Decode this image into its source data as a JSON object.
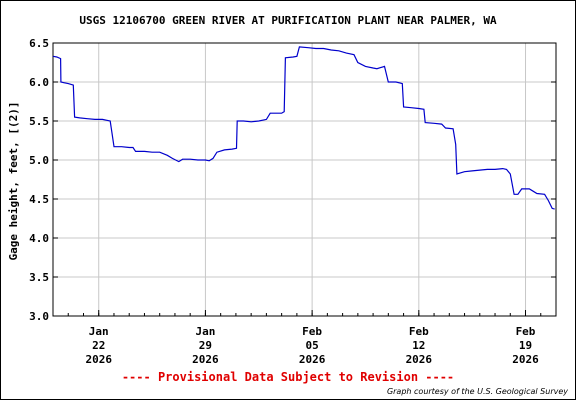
{
  "chart_data": {
    "type": "line",
    "title": "USGS 12106700 GREEN RIVER AT PURIFICATION PLANT NEAR PALMER, WA",
    "ylabel": "Gage height, feet, [(2)]",
    "xlabel": "",
    "ylim": [
      3.0,
      6.5
    ],
    "yticks": [
      {
        "value": 3.0,
        "label": "3.0"
      },
      {
        "value": 3.5,
        "label": "3.5"
      },
      {
        "value": 4.0,
        "label": "4.0"
      },
      {
        "value": 4.5,
        "label": "4.5"
      },
      {
        "value": 5.0,
        "label": "5.0"
      },
      {
        "value": 5.5,
        "label": "5.5"
      },
      {
        "value": 6.0,
        "label": "6.0"
      },
      {
        "value": 6.5,
        "label": "6.5"
      }
    ],
    "xrange": [
      "2026-01-19",
      "2026-02-21"
    ],
    "xticks": [
      {
        "date": "2026-01-22",
        "lines": [
          "Jan",
          "22",
          "2026"
        ]
      },
      {
        "date": "2026-01-29",
        "lines": [
          "Jan",
          "29",
          "2026"
        ]
      },
      {
        "date": "2026-02-05",
        "lines": [
          "Feb",
          "05",
          "2026"
        ]
      },
      {
        "date": "2026-02-12",
        "lines": [
          "Feb",
          "12",
          "2026"
        ]
      },
      {
        "date": "2026-02-19",
        "lines": [
          "Feb",
          "19",
          "2026"
        ]
      }
    ],
    "grid": true,
    "series": [
      {
        "color": "#0000cc",
        "points": [
          [
            "2026-01-19T00:00",
            6.33
          ],
          [
            "2026-01-19T06:00",
            6.32
          ],
          [
            "2026-01-19T12:00",
            6.3
          ],
          [
            "2026-01-19T12:30",
            6.0
          ],
          [
            "2026-01-19T18:00",
            5.99
          ],
          [
            "2026-01-20T00:00",
            5.98
          ],
          [
            "2026-01-20T08:00",
            5.96
          ],
          [
            "2026-01-20T10:00",
            5.55
          ],
          [
            "2026-01-20T18:00",
            5.54
          ],
          [
            "2026-01-21T06:00",
            5.53
          ],
          [
            "2026-01-21T18:00",
            5.52
          ],
          [
            "2026-01-22T06:00",
            5.52
          ],
          [
            "2026-01-22T12:00",
            5.51
          ],
          [
            "2026-01-22T18:00",
            5.5
          ],
          [
            "2026-01-23T00:00",
            5.17
          ],
          [
            "2026-01-23T12:00",
            5.17
          ],
          [
            "2026-01-24T00:00",
            5.16
          ],
          [
            "2026-01-24T06:00",
            5.16
          ],
          [
            "2026-01-24T10:00",
            5.11
          ],
          [
            "2026-01-25T00:00",
            5.11
          ],
          [
            "2026-01-25T12:00",
            5.1
          ],
          [
            "2026-01-26T00:00",
            5.1
          ],
          [
            "2026-01-26T12:00",
            5.06
          ],
          [
            "2026-01-26T20:00",
            5.02
          ],
          [
            "2026-01-27T06:00",
            4.98
          ],
          [
            "2026-01-27T12:00",
            5.01
          ],
          [
            "2026-01-28T00:00",
            5.01
          ],
          [
            "2026-01-28T12:00",
            5.0
          ],
          [
            "2026-01-29T00:00",
            5.0
          ],
          [
            "2026-01-29T06:00",
            4.99
          ],
          [
            "2026-01-29T12:00",
            5.02
          ],
          [
            "2026-01-29T18:00",
            5.1
          ],
          [
            "2026-01-30T06:00",
            5.13
          ],
          [
            "2026-01-30T18:00",
            5.14
          ],
          [
            "2026-01-31T01:00",
            5.15
          ],
          [
            "2026-01-31T02:00",
            5.5
          ],
          [
            "2026-01-31T12:00",
            5.5
          ],
          [
            "2026-02-01T00:00",
            5.49
          ],
          [
            "2026-02-01T12:00",
            5.5
          ],
          [
            "2026-02-02T00:00",
            5.52
          ],
          [
            "2026-02-02T06:00",
            5.6
          ],
          [
            "2026-02-02T12:00",
            5.6
          ],
          [
            "2026-02-03T00:00",
            5.6
          ],
          [
            "2026-02-03T04:00",
            5.62
          ],
          [
            "2026-02-03T06:00",
            6.31
          ],
          [
            "2026-02-03T18:00",
            6.32
          ],
          [
            "2026-02-04T00:00",
            6.33
          ],
          [
            "2026-02-04T04:00",
            6.45
          ],
          [
            "2026-02-04T18:00",
            6.44
          ],
          [
            "2026-02-05T06:00",
            6.43
          ],
          [
            "2026-02-05T18:00",
            6.43
          ],
          [
            "2026-02-06T06:00",
            6.41
          ],
          [
            "2026-02-06T18:00",
            6.4
          ],
          [
            "2026-02-07T06:00",
            6.37
          ],
          [
            "2026-02-07T18:00",
            6.35
          ],
          [
            "2026-02-08T00:00",
            6.25
          ],
          [
            "2026-02-08T12:00",
            6.2
          ],
          [
            "2026-02-09T00:00",
            6.18
          ],
          [
            "2026-02-09T06:00",
            6.17
          ],
          [
            "2026-02-09T18:00",
            6.2
          ],
          [
            "2026-02-10T00:00",
            6.0
          ],
          [
            "2026-02-10T12:00",
            6.0
          ],
          [
            "2026-02-10T22:00",
            5.98
          ],
          [
            "2026-02-11T00:00",
            5.68
          ],
          [
            "2026-02-11T12:00",
            5.67
          ],
          [
            "2026-02-12T00:00",
            5.66
          ],
          [
            "2026-02-12T08:00",
            5.65
          ],
          [
            "2026-02-12T10:00",
            5.48
          ],
          [
            "2026-02-13T00:00",
            5.47
          ],
          [
            "2026-02-13T12:00",
            5.46
          ],
          [
            "2026-02-13T18:00",
            5.41
          ],
          [
            "2026-02-14T06:00",
            5.4
          ],
          [
            "2026-02-14T10:00",
            5.2
          ],
          [
            "2026-02-14T12:00",
            4.82
          ],
          [
            "2026-02-15T00:00",
            4.85
          ],
          [
            "2026-02-15T12:00",
            4.86
          ],
          [
            "2026-02-16T00:00",
            4.87
          ],
          [
            "2026-02-16T12:00",
            4.88
          ],
          [
            "2026-02-17T00:00",
            4.88
          ],
          [
            "2026-02-17T12:00",
            4.89
          ],
          [
            "2026-02-17T18:00",
            4.88
          ],
          [
            "2026-02-18T00:00",
            4.82
          ],
          [
            "2026-02-18T06:00",
            4.56
          ],
          [
            "2026-02-18T12:00",
            4.56
          ],
          [
            "2026-02-18T18:00",
            4.63
          ],
          [
            "2026-02-19T06:00",
            4.63
          ],
          [
            "2026-02-19T12:00",
            4.6
          ],
          [
            "2026-02-19T18:00",
            4.57
          ],
          [
            "2026-02-20T06:00",
            4.56
          ],
          [
            "2026-02-20T12:00",
            4.48
          ],
          [
            "2026-02-20T18:00",
            4.38
          ],
          [
            "2026-02-20T22:00",
            4.37
          ]
        ]
      }
    ]
  },
  "footer": {
    "provisional": "---- Provisional Data Subject to Revision ----",
    "credit": "Graph courtesy of the U.S. Geological Survey"
  },
  "colors": {
    "line": "#0000cc",
    "grid": "#c8c8c8",
    "provisional": "#e00000"
  }
}
